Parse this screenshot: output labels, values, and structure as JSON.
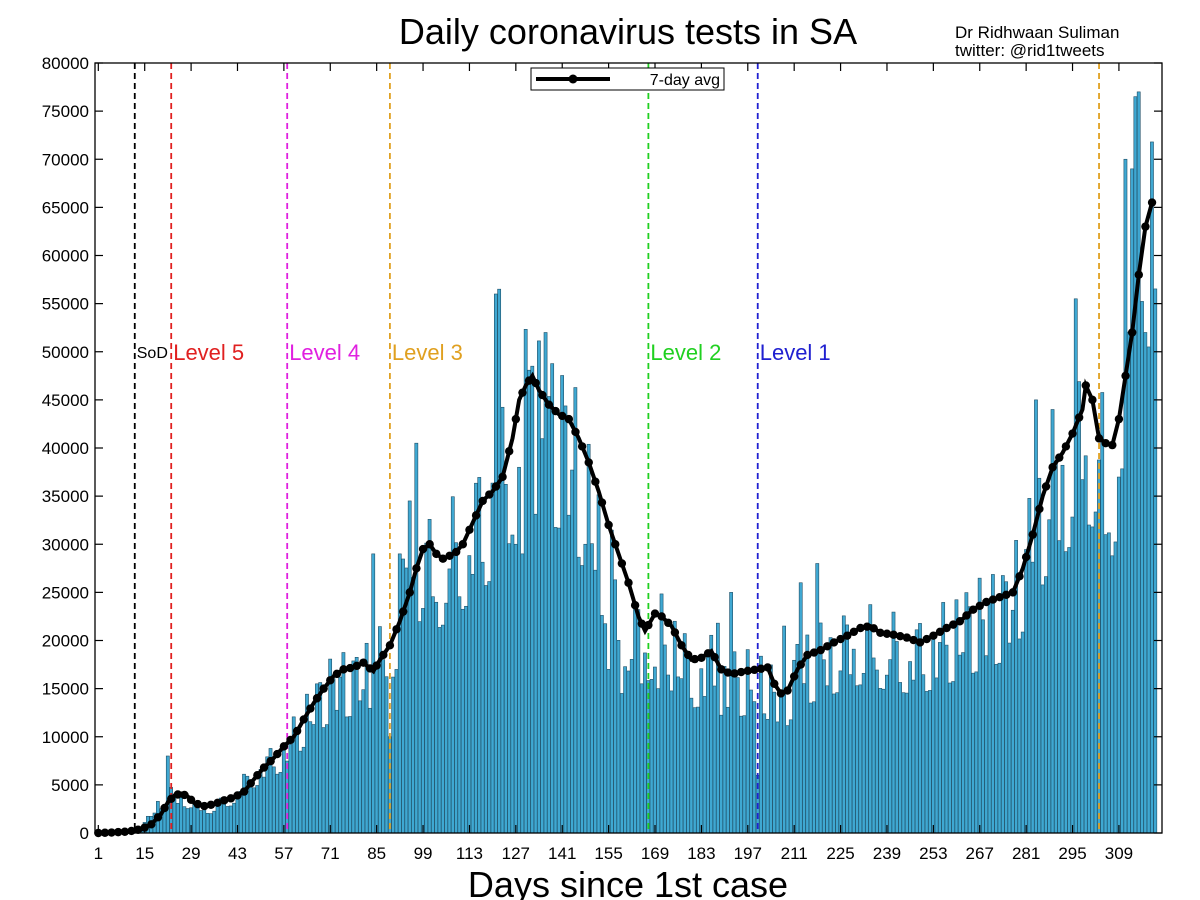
{
  "chart_data": {
    "type": "bar",
    "title": "Daily coronavirus tests in SA",
    "credit_line1": "Dr Ridhwaan Suliman",
    "credit_line2": "twitter: @rid1tweets",
    "xlabel": "Days since 1st case",
    "ylabel": "",
    "xlim": [
      0,
      315
    ],
    "ylim": [
      0,
      80000
    ],
    "yticks": [
      0,
      5000,
      10000,
      15000,
      20000,
      25000,
      30000,
      35000,
      40000,
      45000,
      50000,
      55000,
      60000,
      65000,
      70000,
      75000,
      80000
    ],
    "xticks": [
      1,
      15,
      29,
      43,
      57,
      71,
      85,
      99,
      113,
      127,
      141,
      155,
      169,
      183,
      197,
      211,
      225,
      239,
      253,
      267,
      281,
      295,
      309
    ],
    "grid": false,
    "bar_color": "#3fa8d2",
    "bar_edge_color": "#1f4f66",
    "line_color": "#000000",
    "legend": {
      "label": "7-day avg",
      "position": "top-center"
    },
    "vlines": [
      {
        "day": 12,
        "label": "SoD",
        "color": "#000000"
      },
      {
        "day": 23,
        "label": "Level 5",
        "color": "#e02020"
      },
      {
        "day": 58,
        "label": "Level 4",
        "color": "#e020e0"
      },
      {
        "day": 89,
        "label": "Level 3",
        "color": "#e0a020"
      },
      {
        "day": 167,
        "label": "Level 2",
        "color": "#20d020"
      },
      {
        "day": 200,
        "label": "Level 1",
        "color": "#2020d0"
      },
      {
        "day": 303,
        "label": "",
        "color": "#e0a020"
      }
    ],
    "bar_keypoints": [
      [
        1,
        50
      ],
      [
        10,
        150
      ],
      [
        14,
        600
      ],
      [
        20,
        3500
      ],
      [
        23,
        4200
      ],
      [
        27,
        3800
      ],
      [
        30,
        3000
      ],
      [
        35,
        2800
      ],
      [
        40,
        3500
      ],
      [
        45,
        5500
      ],
      [
        50,
        7200
      ],
      [
        57,
        9000
      ],
      [
        65,
        13500
      ],
      [
        72,
        16500
      ],
      [
        80,
        17000
      ],
      [
        86,
        19000
      ],
      [
        90,
        22500
      ],
      [
        95,
        28000
      ],
      [
        98,
        30500
      ],
      [
        102,
        29000
      ],
      [
        108,
        31000
      ],
      [
        115,
        34000
      ],
      [
        122,
        38000
      ],
      [
        126,
        43000
      ],
      [
        128,
        46500
      ],
      [
        131,
        47500
      ],
      [
        135,
        44500
      ],
      [
        140,
        44000
      ],
      [
        145,
        41000
      ],
      [
        150,
        35000
      ],
      [
        155,
        29000
      ],
      [
        160,
        24000
      ],
      [
        164,
        21500
      ],
      [
        167,
        22000
      ],
      [
        170,
        22500
      ],
      [
        175,
        20000
      ],
      [
        180,
        18000
      ],
      [
        186,
        18500
      ],
      [
        190,
        16500
      ],
      [
        197,
        17000
      ],
      [
        202,
        17200
      ],
      [
        205,
        14800
      ],
      [
        209,
        15500
      ],
      [
        212,
        18000
      ],
      [
        220,
        19500
      ],
      [
        228,
        21000
      ],
      [
        232,
        21500
      ],
      [
        240,
        20500
      ],
      [
        248,
        20000
      ],
      [
        255,
        21000
      ],
      [
        262,
        22500
      ],
      [
        270,
        24000
      ],
      [
        276,
        25000
      ],
      [
        282,
        31000
      ],
      [
        287,
        37000
      ],
      [
        292,
        40000
      ],
      [
        297,
        43000
      ],
      [
        299,
        46500
      ],
      [
        302,
        43000
      ],
      [
        304,
        40500
      ],
      [
        307,
        40000
      ],
      [
        310,
        46000
      ],
      [
        313,
        52000
      ],
      [
        316,
        58000
      ],
      [
        318,
        63000
      ],
      [
        320,
        65500
      ]
    ],
    "spikes": [
      [
        22,
        8000
      ],
      [
        92,
        29000
      ],
      [
        95,
        34500
      ],
      [
        97,
        40500
      ],
      [
        121,
        56000
      ],
      [
        122,
        56500
      ],
      [
        127,
        49000
      ],
      [
        132,
        48500
      ],
      [
        136,
        52000
      ],
      [
        127,
        30000
      ],
      [
        129,
        29000
      ],
      [
        159,
        14500
      ],
      [
        175,
        22000
      ],
      [
        188,
        21800
      ],
      [
        192,
        25000
      ],
      [
        208,
        21500
      ],
      [
        213,
        26000
      ],
      [
        218,
        28000
      ],
      [
        284,
        45000
      ],
      [
        289,
        44000
      ],
      [
        296,
        55500
      ],
      [
        300,
        32000
      ],
      [
        305,
        31000
      ],
      [
        311,
        70000
      ],
      [
        313,
        69000
      ],
      [
        314,
        76500
      ],
      [
        315,
        77000
      ],
      [
        317,
        52000
      ],
      [
        318,
        50500
      ],
      [
        89,
        10000
      ],
      [
        84,
        29000
      ],
      [
        148,
        30000
      ],
      [
        155,
        17000
      ],
      [
        165,
        15500
      ],
      [
        170,
        15000
      ],
      [
        200,
        6000
      ]
    ],
    "seven_day_avg": [
      [
        1,
        0
      ],
      [
        5,
        50
      ],
      [
        10,
        150
      ],
      [
        14,
        400
      ],
      [
        17,
        900
      ],
      [
        20,
        2000
      ],
      [
        22,
        3200
      ],
      [
        24,
        3900
      ],
      [
        26,
        4100
      ],
      [
        28,
        3800
      ],
      [
        30,
        3100
      ],
      [
        33,
        2800
      ],
      [
        36,
        3000
      ],
      [
        39,
        3400
      ],
      [
        42,
        3700
      ],
      [
        45,
        4300
      ],
      [
        48,
        5600
      ],
      [
        51,
        6800
      ],
      [
        54,
        7800
      ],
      [
        57,
        9000
      ],
      [
        60,
        10000
      ],
      [
        63,
        11800
      ],
      [
        66,
        13500
      ],
      [
        69,
        15000
      ],
      [
        72,
        16300
      ],
      [
        75,
        17000
      ],
      [
        78,
        17200
      ],
      [
        81,
        17700
      ],
      [
        84,
        16800
      ],
      [
        86,
        18000
      ],
      [
        89,
        19500
      ],
      [
        92,
        22000
      ],
      [
        95,
        25000
      ],
      [
        97,
        27500
      ],
      [
        99,
        29500
      ],
      [
        101,
        30000
      ],
      [
        103,
        29000
      ],
      [
        105,
        28500
      ],
      [
        107,
        28800
      ],
      [
        109,
        29200
      ],
      [
        111,
        30000
      ],
      [
        113,
        31500
      ],
      [
        115,
        33000
      ],
      [
        117,
        34500
      ],
      [
        120,
        35500
      ],
      [
        123,
        37000
      ],
      [
        126,
        41000
      ],
      [
        128,
        45000
      ],
      [
        130,
        46500
      ],
      [
        132,
        47500
      ],
      [
        134,
        46000
      ],
      [
        137,
        44500
      ],
      [
        140,
        43500
      ],
      [
        143,
        43000
      ],
      [
        146,
        41000
      ],
      [
        149,
        38500
      ],
      [
        152,
        35500
      ],
      [
        155,
        32000
      ],
      [
        158,
        29000
      ],
      [
        161,
        26000
      ],
      [
        164,
        22500
      ],
      [
        166,
        21000
      ],
      [
        169,
        22800
      ],
      [
        171,
        22500
      ],
      [
        174,
        21500
      ],
      [
        177,
        19500
      ],
      [
        180,
        18000
      ],
      [
        183,
        18200
      ],
      [
        186,
        18900
      ],
      [
        189,
        17000
      ],
      [
        192,
        16500
      ],
      [
        196,
        16800
      ],
      [
        200,
        17000
      ],
      [
        203,
        17200
      ],
      [
        205,
        15500
      ],
      [
        207,
        14500
      ],
      [
        209,
        14800
      ],
      [
        212,
        17000
      ],
      [
        215,
        18500
      ],
      [
        219,
        19000
      ],
      [
        223,
        19800
      ],
      [
        227,
        20500
      ],
      [
        231,
        21300
      ],
      [
        234,
        21500
      ],
      [
        237,
        20800
      ],
      [
        241,
        20600
      ],
      [
        245,
        20300
      ],
      [
        249,
        19800
      ],
      [
        253,
        20500
      ],
      [
        257,
        21300
      ],
      [
        261,
        22000
      ],
      [
        265,
        23200
      ],
      [
        269,
        24000
      ],
      [
        273,
        24500
      ],
      [
        277,
        25000
      ],
      [
        280,
        27500
      ],
      [
        283,
        31000
      ],
      [
        286,
        35000
      ],
      [
        289,
        38000
      ],
      [
        292,
        39500
      ],
      [
        295,
        41500
      ],
      [
        298,
        44000
      ],
      [
        299,
        46500
      ],
      [
        301,
        45000
      ],
      [
        303,
        41000
      ],
      [
        305,
        40500
      ],
      [
        307,
        40300
      ],
      [
        309,
        43000
      ],
      [
        311,
        47500
      ],
      [
        313,
        52000
      ],
      [
        315,
        58000
      ],
      [
        317,
        63000
      ],
      [
        319,
        65500
      ],
      [
        320,
        65500
      ]
    ]
  }
}
